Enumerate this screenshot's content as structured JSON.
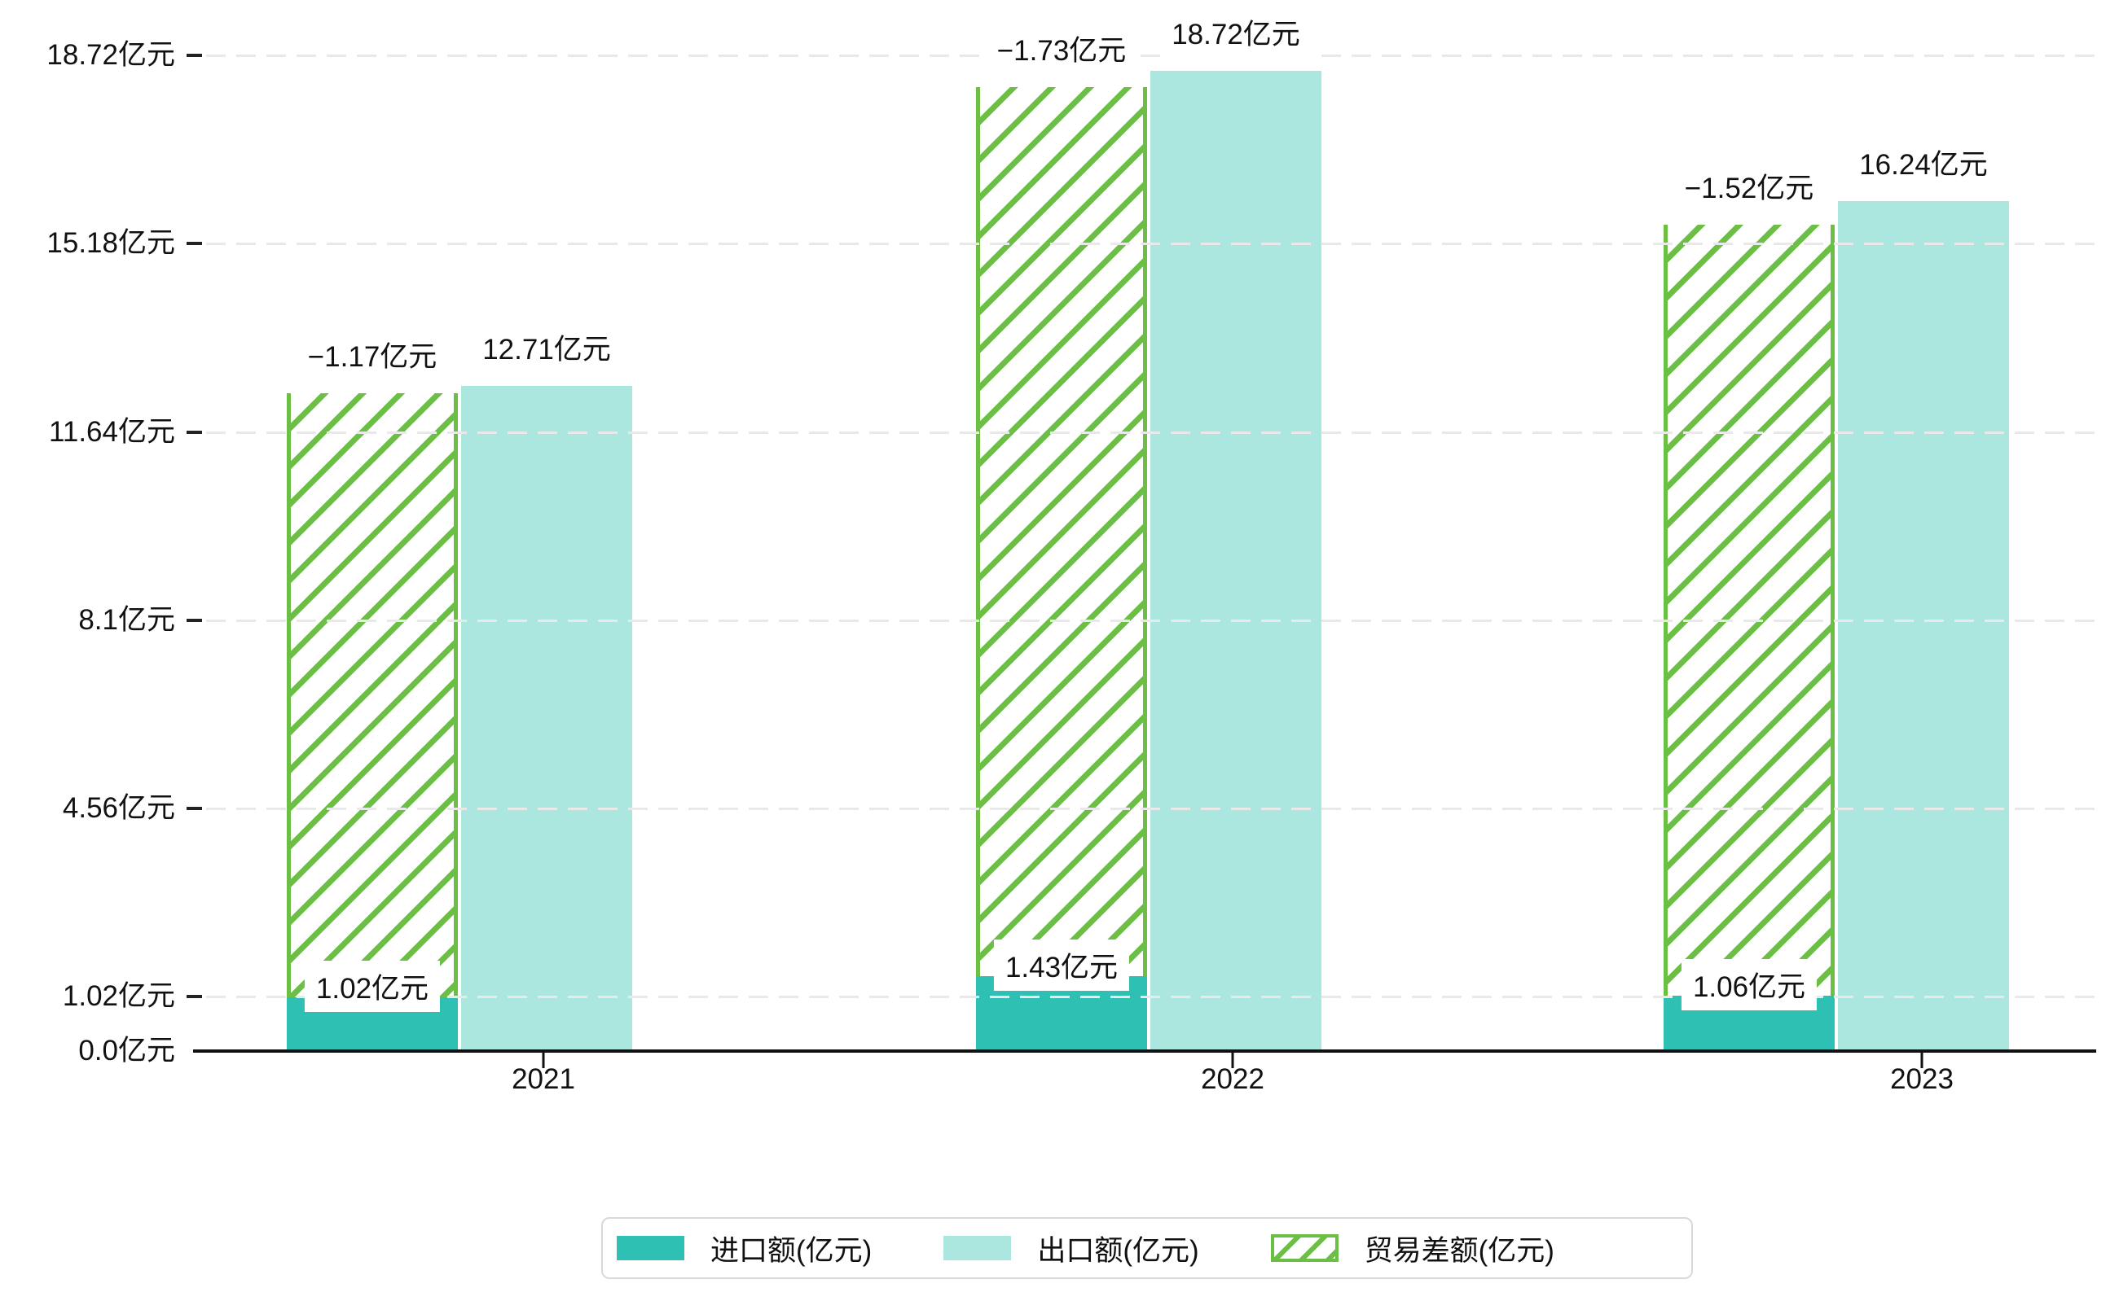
{
  "chart_data": {
    "type": "bar",
    "title": "",
    "categories": [
      "2021",
      "2022",
      "2023"
    ],
    "series": [
      {
        "name": "进口额(亿元)",
        "values": [
          1.02,
          1.43,
          1.06
        ],
        "labels": [
          "1.02亿元",
          "1.43亿元",
          "1.06亿元"
        ],
        "color": "#2EC0B2",
        "pattern": "solid"
      },
      {
        "name": "出口额(亿元)",
        "values": [
          12.71,
          18.72,
          16.24
        ],
        "labels": [
          "12.71亿元",
          "18.72亿元",
          "16.24亿元"
        ],
        "color": "#ABE7DF",
        "pattern": "solid"
      },
      {
        "name": "贸易差额(亿元)",
        "values": [
          -1.17,
          -1.73,
          -1.52
        ],
        "labels": [
          "−1.17亿元",
          "−1.73亿元",
          "−1.52亿元"
        ],
        "color": "#6CBF45",
        "pattern": "hatched"
      }
    ],
    "y_ticks": [
      {
        "value": 0,
        "label": "0.0亿元"
      },
      {
        "value": 1.02,
        "label": "1.02亿元"
      },
      {
        "value": 4.56,
        "label": "4.56亿元"
      },
      {
        "value": 8.1,
        "label": "8.1亿元"
      },
      {
        "value": 11.64,
        "label": "11.64亿元"
      },
      {
        "value": 15.18,
        "label": "15.18亿元"
      },
      {
        "value": 18.72,
        "label": "18.72亿元"
      }
    ],
    "unit": "亿元",
    "xlabel": "",
    "ylabel": "",
    "ylim": [
      0,
      19.3
    ],
    "grid": true,
    "legend_position": "bottom"
  },
  "colors": {
    "axis": "#111111",
    "grid": "#e9e9e9",
    "label_text": "#111111",
    "background": "#ffffff",
    "legend_border": "#d9d9d9"
  }
}
